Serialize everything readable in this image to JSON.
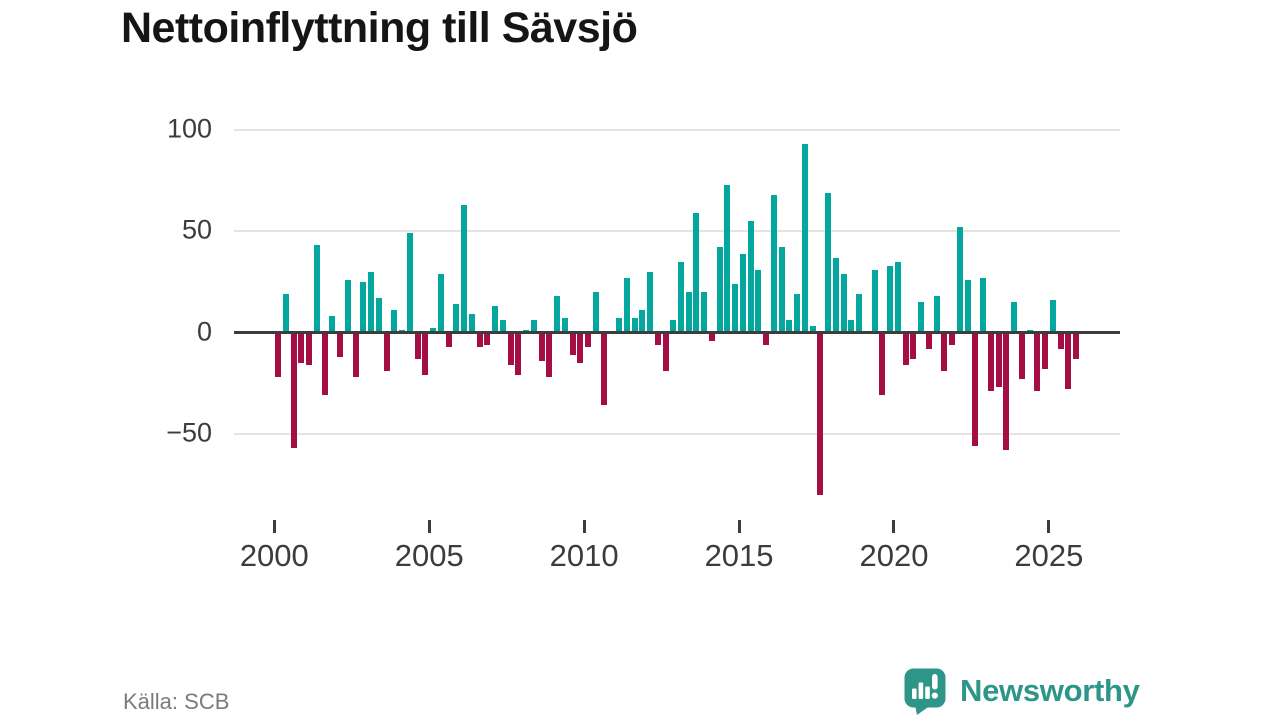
{
  "title": "Nettoinflyttning till Sävsjö",
  "source": "Källa: SCB",
  "brand": {
    "name": "Newsworthy"
  },
  "colors": {
    "positive": "#03a79d",
    "negative": "#a50d45",
    "brand_teal": "#2e9589",
    "grid": "#e4e4e4",
    "axis": "#3d3d3d"
  },
  "chart_data": {
    "type": "bar",
    "title": "Nettoinflyttning till Sävsjö",
    "frequency": "quarterly",
    "start": "2000-Q1",
    "end": "2025-Q4",
    "xlabel": "",
    "ylabel": "",
    "ylim": [
      -88,
      100
    ],
    "y_ticks": [
      100,
      50,
      0,
      -50
    ],
    "x_ticks": [
      2000,
      2005,
      2010,
      2015,
      2020,
      2025
    ],
    "grid": "horizontal",
    "legend": "none",
    "values": [
      -22,
      19,
      -57,
      -15,
      -16,
      43,
      -31,
      8,
      -12,
      26,
      -22,
      25,
      30,
      17,
      -19,
      11,
      1,
      49,
      -13,
      -21,
      2,
      29,
      -7,
      14,
      63,
      9,
      -7,
      -6,
      13,
      6,
      -16,
      -21,
      1,
      6,
      -14,
      -22,
      18,
      7,
      -11,
      -15,
      -7,
      20,
      -36,
      0,
      7,
      27,
      7,
      11,
      30,
      -6,
      -19,
      6,
      35,
      20,
      59,
      20,
      -4,
      42,
      73,
      24,
      39,
      55,
      31,
      -6,
      68,
      42,
      6,
      19,
      93,
      3,
      -80,
      69,
      37,
      29,
      6,
      19,
      0,
      31,
      -31,
      33,
      35,
      -16,
      -13,
      15,
      -8,
      18,
      -19,
      -6,
      52,
      26,
      -56,
      27,
      -29,
      -27,
      -58,
      15,
      -23,
      1,
      -29,
      -18,
      16,
      -8,
      -28,
      -13
    ]
  }
}
